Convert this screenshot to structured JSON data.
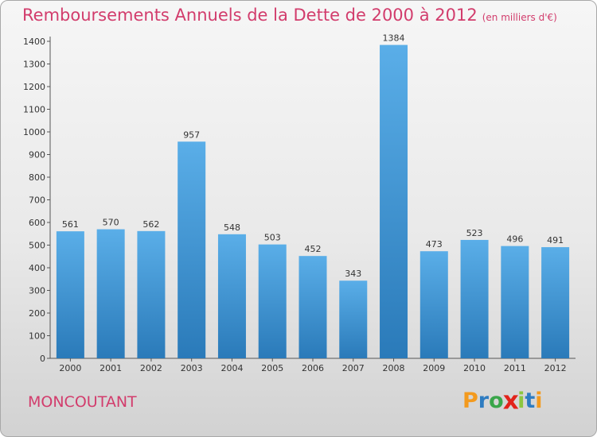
{
  "title": "Remboursements Annuels de la Dette de 2000 à 2012",
  "unit": "(en milliers d'€)",
  "town": "MONCOUTANT",
  "logo": {
    "letters": [
      "P",
      "r",
      "o",
      "x",
      "i",
      "t",
      "i"
    ],
    "colors": [
      "#f39a1e",
      "#2e7cc1",
      "#3aa64a",
      "#e2231a",
      "#8cc63f",
      "#2e7cc1",
      "#f39a1e"
    ]
  },
  "colors": {
    "bar_light": "#5aaee8",
    "bar_dark": "#2a7ab9",
    "accent": "#d23c6c"
  },
  "chart_data": {
    "type": "bar",
    "categories": [
      "2000",
      "2001",
      "2002",
      "2003",
      "2004",
      "2005",
      "2006",
      "2007",
      "2008",
      "2009",
      "2010",
      "2011",
      "2012"
    ],
    "values": [
      561,
      570,
      562,
      957,
      548,
      503,
      452,
      343,
      1384,
      473,
      523,
      496,
      491
    ],
    "ylim": [
      0,
      1400
    ],
    "yticks": [
      0,
      100,
      200,
      300,
      400,
      500,
      600,
      700,
      800,
      900,
      1000,
      1100,
      1200,
      1300,
      1400
    ],
    "grid": false,
    "data_labels": true
  }
}
